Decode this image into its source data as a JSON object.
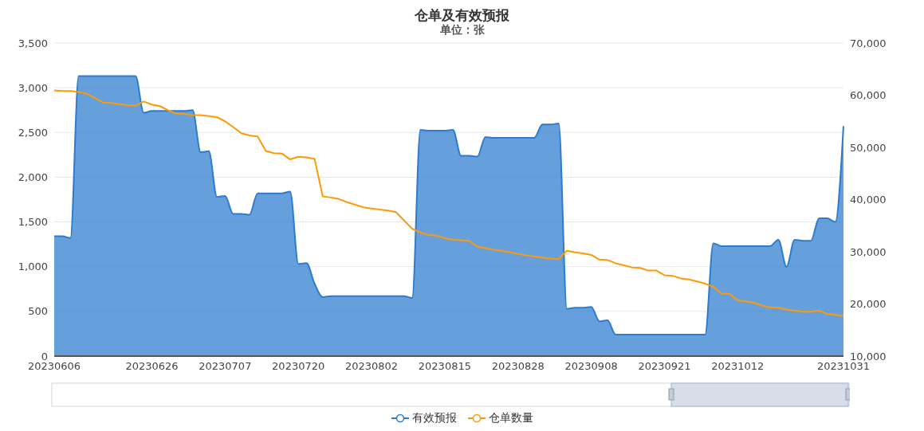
{
  "chart_data": {
    "type": "area",
    "title": "仓单及有效预报",
    "subtitle": "单位：张",
    "categories": [
      "20230606",
      null,
      null,
      null,
      null,
      null,
      null,
      null,
      null,
      null,
      null,
      null,
      "20230626",
      null,
      null,
      null,
      null,
      null,
      null,
      null,
      null,
      "20230707",
      null,
      null,
      null,
      null,
      null,
      null,
      null,
      null,
      "20230720",
      null,
      null,
      null,
      null,
      null,
      null,
      null,
      null,
      "20230802",
      null,
      null,
      null,
      null,
      null,
      null,
      null,
      null,
      "20230815",
      null,
      null,
      null,
      null,
      null,
      null,
      null,
      null,
      "20230828",
      null,
      null,
      null,
      null,
      null,
      null,
      null,
      null,
      "20230908",
      null,
      null,
      null,
      null,
      null,
      null,
      null,
      null,
      "20230921",
      null,
      null,
      null,
      null,
      null,
      null,
      null,
      null,
      "20231012",
      null,
      null,
      null,
      null,
      null,
      null,
      null,
      null,
      null,
      null,
      null,
      null,
      "20231031"
    ],
    "series": [
      {
        "name": "有效预报",
        "color": "#2b7bcf",
        "values": [
          1340,
          1340,
          1320,
          3130,
          3130,
          3130,
          3130,
          3130,
          3130,
          3130,
          3130,
          2720,
          2740,
          2740,
          2740,
          2740,
          2740,
          2750,
          2280,
          2290,
          1780,
          1790,
          1590,
          1590,
          1580,
          1820,
          1820,
          1820,
          1820,
          1840,
          1030,
          1040,
          810,
          660,
          670,
          670,
          670,
          670,
          670,
          670,
          670,
          670,
          670,
          670,
          650,
          2530,
          2520,
          2520,
          2520,
          2530,
          2240,
          2240,
          2230,
          2450,
          2440,
          2440,
          2440,
          2440,
          2440,
          2440,
          2590,
          2590,
          2600,
          530,
          540,
          540,
          550,
          390,
          400,
          240,
          240,
          240,
          240,
          240,
          240,
          240,
          240,
          240,
          240,
          240,
          240,
          1260,
          1230,
          1230,
          1230,
          1230,
          1230,
          1230,
          1230,
          1300,
          1000,
          1300,
          1290,
          1290,
          1540,
          1540,
          1500,
          2570
        ]
      },
      {
        "name": "仓单数量",
        "type": "line",
        "axis": "y2",
        "color": "#ff9a05",
        "values": [
          60900,
          60800,
          60800,
          60600,
          60300,
          59500,
          58600,
          58500,
          58300,
          58100,
          58000,
          58800,
          58200,
          57900,
          57100,
          56500,
          56400,
          56200,
          56200,
          56000,
          55800,
          55000,
          53900,
          52700,
          52300,
          52100,
          49300,
          48900,
          48800,
          47700,
          48200,
          48100,
          47800,
          40600,
          40400,
          40100,
          39500,
          39000,
          38500,
          38300,
          38100,
          37900,
          37600,
          36000,
          34400,
          33700,
          33200,
          33100,
          32600,
          32300,
          32200,
          32100,
          31000,
          30700,
          30400,
          30200,
          29900,
          29600,
          29300,
          29100,
          28900,
          28700,
          28600,
          30200,
          29900,
          29700,
          29400,
          28500,
          28400,
          27800,
          27400,
          27000,
          26900,
          26400,
          26400,
          25500,
          25400,
          24900,
          24700,
          24300,
          23900,
          23300,
          22000,
          21900,
          20700,
          20500,
          20200,
          19700,
          19300,
          19300,
          18900,
          18700,
          18500,
          18500,
          18700,
          18100,
          17900,
          17700
        ]
      }
    ],
    "ylim": [
      0,
      3500
    ],
    "yticks": [
      0,
      500,
      {
        "value": 1000,
        "label": "1,000"
      },
      {
        "value": 1500,
        "label": "1,500"
      },
      {
        "value": 2000,
        "label": "2,000"
      },
      {
        "value": 2500,
        "label": "2,500"
      },
      {
        "value": 3000,
        "label": "3,000"
      },
      {
        "value": 3500,
        "label": "3,500"
      }
    ],
    "y2lim": [
      10000,
      70000
    ],
    "y2ticks": [
      {
        "value": 10000,
        "label": "10,000"
      },
      {
        "value": 20000,
        "label": "20,000"
      },
      {
        "value": 30000,
        "label": "30,000"
      },
      {
        "value": 40000,
        "label": "40,000"
      },
      {
        "value": 50000,
        "label": "50,000"
      },
      {
        "value": 60000,
        "label": "60,000"
      },
      {
        "value": 70000,
        "label": "70,000"
      }
    ],
    "grid": "y",
    "legend": "bottom"
  }
}
